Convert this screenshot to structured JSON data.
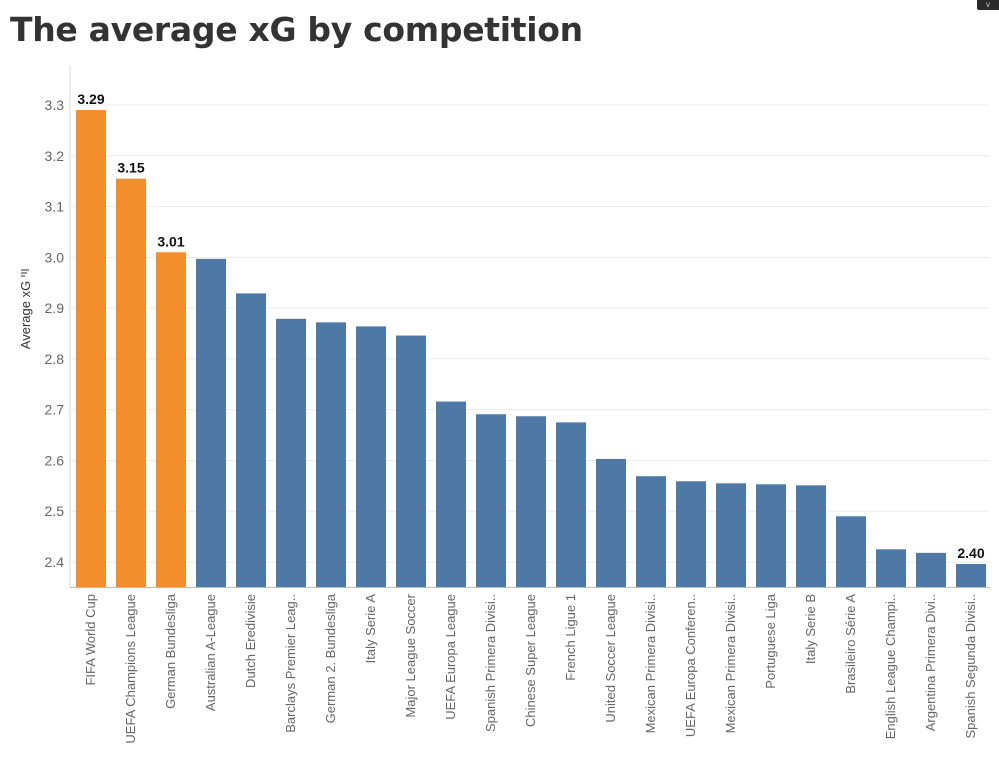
{
  "header": {
    "title": "The average xG by competition"
  },
  "chart_data": {
    "type": "bar",
    "title": "The average xG by competition",
    "xlabel": "",
    "ylabel": "Average xG",
    "ylim": [
      2.35,
      3.35
    ],
    "yticks": [
      2.4,
      2.5,
      2.6,
      2.7,
      2.8,
      2.9,
      3.0,
      3.1,
      3.2,
      3.3
    ],
    "ytick_labels": [
      "2.4",
      "2.5",
      "2.6",
      "2.7",
      "2.8",
      "2.9",
      "3.0",
      "3.1",
      "3.2",
      "3.3"
    ],
    "grid": true,
    "highlight_color": "#F28E2B",
    "base_color": "#4E79A7",
    "categories": [
      "FIFA World Cup",
      "UEFA Champions League",
      "German Bundesliga",
      "Australian A-League",
      "Dutch Eredivisie",
      "Barclays Premier Leag..",
      "German 2. Bundesliga",
      "Italy Serie A",
      "Major League Soccer",
      "UEFA Europa League",
      "Spanish Primera Divisi..",
      "Chinese Super League",
      "French Ligue 1",
      "United Soccer League",
      "Mexican Primera Divisi..",
      "UEFA Europa Conferen..",
      "Mexican Primera Divisi..",
      "Portuguese Liga",
      "Italy Serie B",
      "Brasileiro Série A",
      "English League Champi..",
      "Argentina Primera Divi..",
      "Spanish Segunda Divisi.."
    ],
    "values": [
      3.29,
      3.155,
      3.01,
      2.997,
      2.929,
      2.879,
      2.872,
      2.864,
      2.846,
      2.716,
      2.691,
      2.687,
      2.675,
      2.603,
      2.569,
      2.559,
      2.555,
      2.553,
      2.551,
      2.49,
      2.425,
      2.418,
      2.396
    ],
    "highlighted": [
      true,
      true,
      true,
      false,
      false,
      false,
      false,
      false,
      false,
      false,
      false,
      false,
      false,
      false,
      false,
      false,
      false,
      false,
      false,
      false,
      false,
      false,
      false
    ],
    "data_labels": [
      "3.29",
      "3.15",
      "3.01",
      "",
      "",
      "",
      "",
      "",
      "",
      "",
      "",
      "",
      "",
      "",
      "",
      "",
      "",
      "",
      "",
      "",
      "",
      "",
      "2.40"
    ]
  }
}
